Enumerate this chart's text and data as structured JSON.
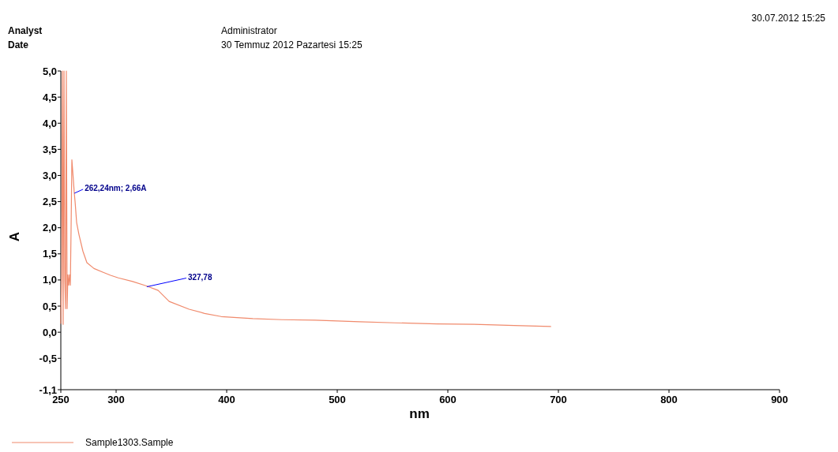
{
  "chart_data": {
    "type": "line",
    "xlabel": "nm",
    "ylabel": "A",
    "xlim": [
      250,
      900
    ],
    "xticks": [
      250,
      300,
      400,
      500,
      600,
      700,
      800,
      900
    ],
    "ylim": [
      -1.1,
      5.0
    ],
    "yticks": [
      {
        "value": -1.1,
        "label": "-1,1"
      },
      {
        "value": -0.5,
        "label": "-0,5"
      },
      {
        "value": 0,
        "label": "0,0"
      },
      {
        "value": 0.5,
        "label": "0,5"
      },
      {
        "value": 1,
        "label": "1,0"
      },
      {
        "value": 1.5,
        "label": "1,5"
      },
      {
        "value": 2,
        "label": "2,0"
      },
      {
        "value": 2.5,
        "label": "2,5"
      },
      {
        "value": 3,
        "label": "3,0"
      },
      {
        "value": 3.5,
        "label": "3,5"
      },
      {
        "value": 4,
        "label": "4,0"
      },
      {
        "value": 4.5,
        "label": "4,5"
      },
      {
        "value": 5,
        "label": "5,0"
      }
    ],
    "grid": false,
    "legend": "bottom left",
    "line_style": "solid",
    "marker": "none",
    "series": [
      {
        "name": "Sample1303.Sample",
        "color": "#f08a6c",
        "x": [
          250,
          250.7,
          251.4,
          252.1,
          252.9,
          253.6,
          254.3,
          255,
          255.7,
          256.4,
          257.1,
          257.9,
          258.6,
          259.3,
          260,
          260.7,
          261.4,
          262.2,
          262.9,
          264.3,
          266.4,
          270,
          273.6,
          280,
          287.9,
          295,
          302,
          315,
          327,
          338,
          348,
          366,
          380,
          395,
          423.6,
          450,
          480,
          520,
          552,
          590,
          623.6,
          660,
          693
        ],
        "values": [
          0.17,
          1.1,
          5.0,
          0.15,
          5.0,
          1.0,
          0.45,
          5.0,
          0.45,
          1.1,
          0.9,
          1.1,
          0.9,
          2.0,
          3.3,
          3.1,
          2.9,
          2.66,
          2.5,
          2.1,
          1.87,
          1.55,
          1.33,
          1.22,
          1.15,
          1.09,
          1.04,
          0.97,
          0.89,
          0.8,
          0.59,
          0.44,
          0.36,
          0.3,
          0.26,
          0.24,
          0.23,
          0.2,
          0.18,
          0.16,
          0.15,
          0.13,
          0.11
        ]
      }
    ],
    "annotations": [
      "Analyst",
      "Administrator",
      "Date",
      "30 Temmuz 2012 Pazartesi 15:25",
      "30.07.2012 15:25",
      {
        "text": "262,24nm; 2,66A",
        "x": 262.24,
        "y": 2.66
      },
      {
        "text": "327,78",
        "x": 327.78,
        "y": 0.87
      }
    ]
  }
}
